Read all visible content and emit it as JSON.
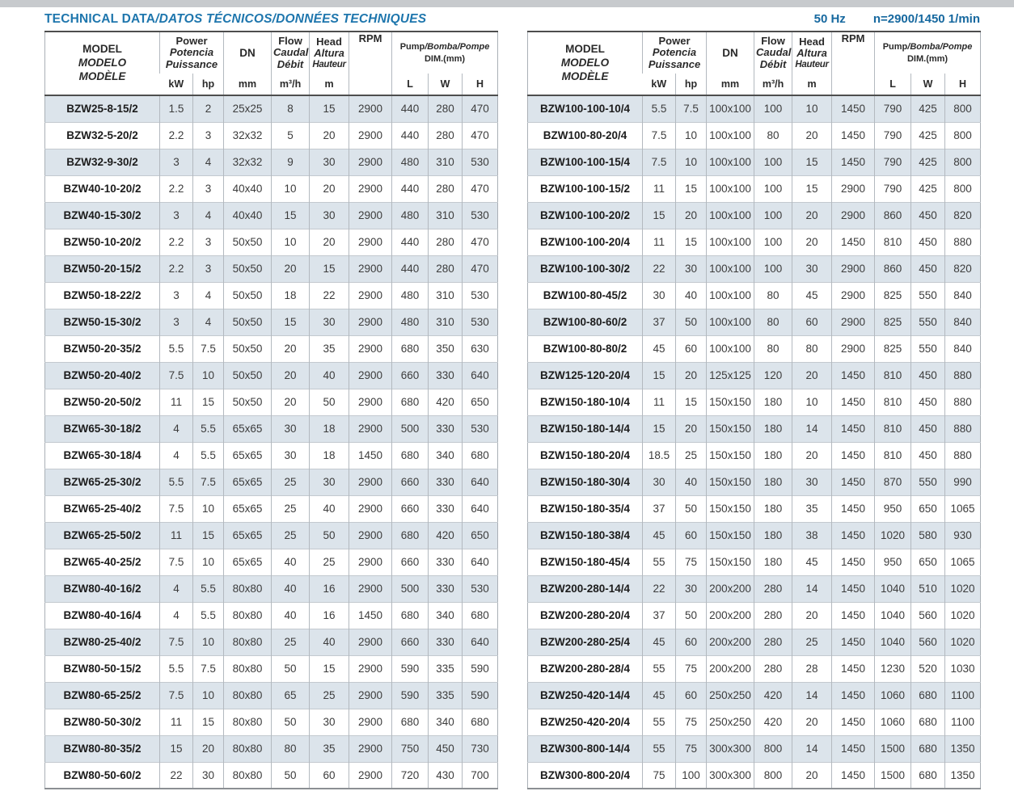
{
  "page": {
    "title_primary": "TECHNICAL DATA",
    "title_secondary": "/DATOS TÉCNICOS/DONNÉES TECHNIQUES",
    "frequency": "50 Hz",
    "speed": "n=2900/1450 1/min"
  },
  "colors": {
    "title_blue": "#1e76ad",
    "specs_blue": "#16689f",
    "row_stripe": "#dce4eb"
  },
  "header": {
    "model": [
      "MODEL",
      "MODELO",
      "MODÈLE"
    ],
    "power": [
      "Power",
      "Potencia",
      "Puissance"
    ],
    "power_units": [
      "kW",
      "hp"
    ],
    "dn": "DN",
    "dn_unit": "mm",
    "flow": [
      "Flow",
      "Caudal",
      "Débit"
    ],
    "flow_unit": "m³/h",
    "head": [
      "Head",
      "Altura",
      "Hauteur"
    ],
    "head_unit": "m",
    "rpm": "RPM",
    "dim_title_primary": "Pump",
    "dim_title_secondary": "/Bomba/Pompe",
    "dim_title_line2": "DIM.(mm)",
    "dim_units": [
      "L",
      "W",
      "H"
    ]
  },
  "tables": {
    "left": {
      "rows": [
        [
          "BZW25-8-15/2",
          "1.5",
          "2",
          "25x25",
          "8",
          "15",
          "2900",
          "440",
          "280",
          "470"
        ],
        [
          "BZW32-5-20/2",
          "2.2",
          "3",
          "32x32",
          "5",
          "20",
          "2900",
          "440",
          "280",
          "470"
        ],
        [
          "BZW32-9-30/2",
          "3",
          "4",
          "32x32",
          "9",
          "30",
          "2900",
          "480",
          "310",
          "530"
        ],
        [
          "BZW40-10-20/2",
          "2.2",
          "3",
          "40x40",
          "10",
          "20",
          "2900",
          "440",
          "280",
          "470"
        ],
        [
          "BZW40-15-30/2",
          "3",
          "4",
          "40x40",
          "15",
          "30",
          "2900",
          "480",
          "310",
          "530"
        ],
        [
          "BZW50-10-20/2",
          "2.2",
          "3",
          "50x50",
          "10",
          "20",
          "2900",
          "440",
          "280",
          "470"
        ],
        [
          "BZW50-20-15/2",
          "2.2",
          "3",
          "50x50",
          "20",
          "15",
          "2900",
          "440",
          "280",
          "470"
        ],
        [
          "BZW50-18-22/2",
          "3",
          "4",
          "50x50",
          "18",
          "22",
          "2900",
          "480",
          "310",
          "530"
        ],
        [
          "BZW50-15-30/2",
          "3",
          "4",
          "50x50",
          "15",
          "30",
          "2900",
          "480",
          "310",
          "530"
        ],
        [
          "BZW50-20-35/2",
          "5.5",
          "7.5",
          "50x50",
          "20",
          "35",
          "2900",
          "680",
          "350",
          "630"
        ],
        [
          "BZW50-20-40/2",
          "7.5",
          "10",
          "50x50",
          "20",
          "40",
          "2900",
          "660",
          "330",
          "640"
        ],
        [
          "BZW50-20-50/2",
          "11",
          "15",
          "50x50",
          "20",
          "50",
          "2900",
          "680",
          "420",
          "650"
        ],
        [
          "BZW65-30-18/2",
          "4",
          "5.5",
          "65x65",
          "30",
          "18",
          "2900",
          "500",
          "330",
          "530"
        ],
        [
          "BZW65-30-18/4",
          "4",
          "5.5",
          "65x65",
          "30",
          "18",
          "1450",
          "680",
          "340",
          "680"
        ],
        [
          "BZW65-25-30/2",
          "5.5",
          "7.5",
          "65x65",
          "25",
          "30",
          "2900",
          "660",
          "330",
          "640"
        ],
        [
          "BZW65-25-40/2",
          "7.5",
          "10",
          "65x65",
          "25",
          "40",
          "2900",
          "660",
          "330",
          "640"
        ],
        [
          "BZW65-25-50/2",
          "11",
          "15",
          "65x65",
          "25",
          "50",
          "2900",
          "680",
          "420",
          "650"
        ],
        [
          "BZW65-40-25/2",
          "7.5",
          "10",
          "65x65",
          "40",
          "25",
          "2900",
          "660",
          "330",
          "640"
        ],
        [
          "BZW80-40-16/2",
          "4",
          "5.5",
          "80x80",
          "40",
          "16",
          "2900",
          "500",
          "330",
          "530"
        ],
        [
          "BZW80-40-16/4",
          "4",
          "5.5",
          "80x80",
          "40",
          "16",
          "1450",
          "680",
          "340",
          "680"
        ],
        [
          "BZW80-25-40/2",
          "7.5",
          "10",
          "80x80",
          "25",
          "40",
          "2900",
          "660",
          "330",
          "640"
        ],
        [
          "BZW80-50-15/2",
          "5.5",
          "7.5",
          "80x80",
          "50",
          "15",
          "2900",
          "590",
          "335",
          "590"
        ],
        [
          "BZW80-65-25/2",
          "7.5",
          "10",
          "80x80",
          "65",
          "25",
          "2900",
          "590",
          "335",
          "590"
        ],
        [
          "BZW80-50-30/2",
          "11",
          "15",
          "80x80",
          "50",
          "30",
          "2900",
          "680",
          "340",
          "680"
        ],
        [
          "BZW80-80-35/2",
          "15",
          "20",
          "80x80",
          "80",
          "35",
          "2900",
          "750",
          "450",
          "730"
        ],
        [
          "BZW80-50-60/2",
          "22",
          "30",
          "80x80",
          "50",
          "60",
          "2900",
          "720",
          "430",
          "700"
        ]
      ]
    },
    "right": {
      "rows": [
        [
          "BZW100-100-10/4",
          "5.5",
          "7.5",
          "100x100",
          "100",
          "10",
          "1450",
          "790",
          "425",
          "800"
        ],
        [
          "BZW100-80-20/4",
          "7.5",
          "10",
          "100x100",
          "80",
          "20",
          "1450",
          "790",
          "425",
          "800"
        ],
        [
          "BZW100-100-15/4",
          "7.5",
          "10",
          "100x100",
          "100",
          "15",
          "1450",
          "790",
          "425",
          "800"
        ],
        [
          "BZW100-100-15/2",
          "11",
          "15",
          "100x100",
          "100",
          "15",
          "2900",
          "790",
          "425",
          "800"
        ],
        [
          "BZW100-100-20/2",
          "15",
          "20",
          "100x100",
          "100",
          "20",
          "2900",
          "860",
          "450",
          "820"
        ],
        [
          "BZW100-100-20/4",
          "11",
          "15",
          "100x100",
          "100",
          "20",
          "1450",
          "810",
          "450",
          "880"
        ],
        [
          "BZW100-100-30/2",
          "22",
          "30",
          "100x100",
          "100",
          "30",
          "2900",
          "860",
          "450",
          "820"
        ],
        [
          "BZW100-80-45/2",
          "30",
          "40",
          "100x100",
          "80",
          "45",
          "2900",
          "825",
          "550",
          "840"
        ],
        [
          "BZW100-80-60/2",
          "37",
          "50",
          "100x100",
          "80",
          "60",
          "2900",
          "825",
          "550",
          "840"
        ],
        [
          "BZW100-80-80/2",
          "45",
          "60",
          "100x100",
          "80",
          "80",
          "2900",
          "825",
          "550",
          "840"
        ],
        [
          "BZW125-120-20/4",
          "15",
          "20",
          "125x125",
          "120",
          "20",
          "1450",
          "810",
          "450",
          "880"
        ],
        [
          "BZW150-180-10/4",
          "11",
          "15",
          "150x150",
          "180",
          "10",
          "1450",
          "810",
          "450",
          "880"
        ],
        [
          "BZW150-180-14/4",
          "15",
          "20",
          "150x150",
          "180",
          "14",
          "1450",
          "810",
          "450",
          "880"
        ],
        [
          "BZW150-180-20/4",
          "18.5",
          "25",
          "150x150",
          "180",
          "20",
          "1450",
          "810",
          "450",
          "880"
        ],
        [
          "BZW150-180-30/4",
          "30",
          "40",
          "150x150",
          "180",
          "30",
          "1450",
          "870",
          "550",
          "990"
        ],
        [
          "BZW150-180-35/4",
          "37",
          "50",
          "150x150",
          "180",
          "35",
          "1450",
          "950",
          "650",
          "1065"
        ],
        [
          "BZW150-180-38/4",
          "45",
          "60",
          "150x150",
          "180",
          "38",
          "1450",
          "1020",
          "580",
          "930"
        ],
        [
          "BZW150-180-45/4",
          "55",
          "75",
          "150x150",
          "180",
          "45",
          "1450",
          "950",
          "650",
          "1065"
        ],
        [
          "BZW200-280-14/4",
          "22",
          "30",
          "200x200",
          "280",
          "14",
          "1450",
          "1040",
          "510",
          "1020"
        ],
        [
          "BZW200-280-20/4",
          "37",
          "50",
          "200x200",
          "280",
          "20",
          "1450",
          "1040",
          "560",
          "1020"
        ],
        [
          "BZW200-280-25/4",
          "45",
          "60",
          "200x200",
          "280",
          "25",
          "1450",
          "1040",
          "560",
          "1020"
        ],
        [
          "BZW200-280-28/4",
          "55",
          "75",
          "200x200",
          "280",
          "28",
          "1450",
          "1230",
          "520",
          "1030"
        ],
        [
          "BZW250-420-14/4",
          "45",
          "60",
          "250x250",
          "420",
          "14",
          "1450",
          "1060",
          "680",
          "1100"
        ],
        [
          "BZW250-420-20/4",
          "55",
          "75",
          "250x250",
          "420",
          "20",
          "1450",
          "1060",
          "680",
          "1100"
        ],
        [
          "BZW300-800-14/4",
          "55",
          "75",
          "300x300",
          "800",
          "14",
          "1450",
          "1500",
          "680",
          "1350"
        ],
        [
          "BZW300-800-20/4",
          "75",
          "100",
          "300x300",
          "800",
          "20",
          "1450",
          "1500",
          "680",
          "1350"
        ]
      ]
    }
  }
}
